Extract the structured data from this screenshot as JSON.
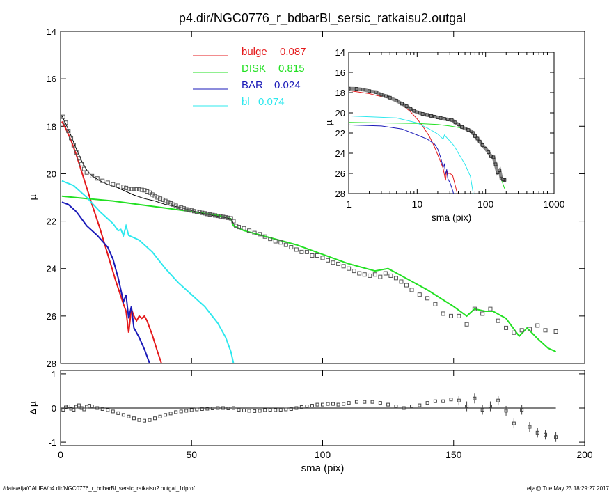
{
  "chart_data": [
    {
      "panel": "main",
      "type": "line",
      "title": "p4.dir/NGC0776_r_bdbarBl_sersic_ratkaisu2.outgal",
      "xlabel": "",
      "ylabel": "µ",
      "xlim": [
        0,
        200
      ],
      "ylim": [
        28,
        14
      ],
      "y_inverted": true,
      "xticks": [
        0,
        50,
        100,
        150,
        200
      ],
      "yticks": [
        14,
        16,
        18,
        20,
        22,
        24,
        26,
        28
      ],
      "legend": [
        {
          "name": "bulge",
          "value": "0.087",
          "color": "#e41a1c"
        },
        {
          "name": "DISK",
          "value": "0.815",
          "color": "#22e022"
        },
        {
          "name": "BAR",
          "value": "0.024",
          "color": "#1a1ab8"
        },
        {
          "name": "bl",
          "value": "0.074",
          "color": "#2ee8ee"
        }
      ],
      "legend_position": "top-center",
      "series": [
        {
          "name": "bulge",
          "color": "#e41a1c",
          "x": [
            0.5,
            2,
            4,
            6,
            8,
            10,
            12,
            15,
            18,
            21,
            24,
            25,
            26,
            27,
            28,
            29,
            30,
            31,
            32,
            33,
            35,
            37,
            38.5
          ],
          "y": [
            17.8,
            18.1,
            18.6,
            19.2,
            19.9,
            20.6,
            21.3,
            22.3,
            23.4,
            24.5,
            25.5,
            25.8,
            26.7,
            25.7,
            26.0,
            26.2,
            26.0,
            26.1,
            26.0,
            26.2,
            26.8,
            27.5,
            28.0
          ]
        },
        {
          "name": "DISK",
          "color": "#22e022",
          "x": [
            0.5,
            10,
            20,
            30,
            40,
            50,
            60,
            65,
            66,
            70,
            80,
            90,
            100,
            110,
            120,
            125,
            130,
            140,
            150,
            155,
            158,
            162,
            165,
            170,
            175,
            178,
            182,
            186,
            189
          ],
          "y": [
            20.95,
            21.05,
            21.15,
            21.3,
            21.45,
            21.6,
            21.75,
            21.9,
            22.2,
            22.4,
            22.7,
            23.0,
            23.4,
            23.8,
            24.1,
            24.0,
            24.3,
            24.9,
            25.6,
            26.0,
            25.7,
            25.8,
            25.8,
            26.1,
            26.85,
            26.5,
            26.95,
            27.35,
            27.5
          ]
        },
        {
          "name": "BAR",
          "color": "#1a1ab8",
          "x": [
            0.5,
            3,
            6,
            10,
            14,
            18,
            20,
            22,
            24,
            25,
            26,
            27,
            28,
            30,
            32,
            34
          ],
          "y": [
            21.2,
            21.3,
            21.6,
            22.2,
            22.6,
            23.1,
            23.6,
            24.4,
            25.4,
            25.1,
            26.1,
            25.6,
            26.5,
            26.9,
            27.4,
            28.0
          ]
        },
        {
          "name": "bl",
          "color": "#2ee8ee",
          "x": [
            0.5,
            5,
            10,
            15,
            20,
            22,
            23,
            24,
            25,
            26,
            28,
            30,
            35,
            40,
            45,
            50,
            55,
            60,
            63,
            65,
            66
          ],
          "y": [
            20.3,
            20.5,
            21.0,
            21.6,
            22.1,
            22.4,
            22.35,
            22.6,
            22.2,
            22.6,
            22.7,
            22.8,
            23.3,
            24.0,
            24.6,
            25.1,
            25.6,
            26.3,
            26.9,
            27.5,
            28.0
          ]
        },
        {
          "name": "model-total",
          "color": "#000000",
          "x": [
            0.5,
            2,
            4,
            6,
            8,
            10,
            12,
            15,
            18,
            22,
            25,
            28,
            32,
            36,
            40,
            45,
            50,
            55,
            60,
            65,
            66
          ],
          "y": [
            17.55,
            17.9,
            18.4,
            18.95,
            19.45,
            19.85,
            20.1,
            20.3,
            20.45,
            20.6,
            20.75,
            20.9,
            21.05,
            21.15,
            21.3,
            21.4,
            21.55,
            21.7,
            21.8,
            21.9,
            22.1
          ]
        },
        {
          "name": "observed",
          "color": "#555555",
          "marker": "square",
          "x": [
            1,
            2,
            3,
            4,
            5,
            6,
            7,
            8,
            9,
            10,
            12,
            14,
            16,
            18,
            20,
            22,
            24,
            25,
            26,
            27,
            28,
            29,
            30,
            31,
            32,
            33,
            34,
            35,
            36,
            37,
            38,
            39,
            40,
            41,
            42,
            43,
            44,
            45,
            46,
            47,
            48,
            49,
            50,
            51,
            52,
            53,
            54,
            55,
            56,
            57,
            58,
            59,
            60,
            61,
            62,
            63,
            64,
            65,
            66,
            67,
            68,
            70,
            72,
            74,
            76,
            78,
            80,
            82,
            84,
            86,
            88,
            90,
            92,
            94,
            96,
            98,
            100,
            102,
            104,
            106,
            108,
            110,
            112,
            114,
            116,
            118,
            120,
            122,
            124,
            126,
            128,
            130,
            132,
            134,
            137,
            140,
            143,
            146,
            149,
            152,
            155,
            158,
            161,
            164,
            167,
            170,
            173,
            176,
            179,
            182,
            185,
            189
          ],
          "y": [
            17.6,
            17.85,
            18.2,
            18.5,
            18.8,
            19.1,
            19.35,
            19.6,
            19.8,
            19.95,
            20.1,
            20.2,
            20.3,
            20.38,
            20.45,
            20.5,
            20.55,
            20.6,
            20.65,
            20.65,
            20.65,
            20.66,
            20.66,
            20.68,
            20.7,
            20.75,
            20.8,
            20.88,
            20.95,
            21.0,
            21.05,
            21.1,
            21.15,
            21.2,
            21.25,
            21.3,
            21.35,
            21.4,
            21.43,
            21.46,
            21.5,
            21.52,
            21.55,
            21.58,
            21.6,
            21.62,
            21.65,
            21.67,
            21.7,
            21.72,
            21.74,
            21.76,
            21.78,
            21.8,
            21.82,
            21.84,
            21.86,
            21.88,
            22.0,
            22.2,
            22.25,
            22.3,
            22.4,
            22.5,
            22.55,
            22.65,
            22.75,
            22.85,
            22.9,
            23.0,
            23.1,
            23.2,
            23.3,
            23.3,
            23.45,
            23.45,
            23.55,
            23.65,
            23.75,
            23.8,
            23.9,
            24.0,
            24.1,
            24.2,
            24.25,
            24.3,
            24.25,
            24.35,
            24.2,
            24.3,
            24.4,
            24.55,
            24.7,
            24.9,
            25.1,
            25.25,
            25.5,
            25.9,
            26.0,
            26.0,
            26.35,
            25.7,
            25.9,
            25.7,
            26.2,
            26.5,
            26.7,
            26.6,
            26.55,
            26.4,
            26.6,
            26.65
          ]
        }
      ]
    },
    {
      "panel": "inset",
      "type": "line",
      "xlabel": "sma (pix)",
      "ylabel": "µ",
      "xscale": "log",
      "xlim": [
        1,
        1000
      ],
      "ylim": [
        28,
        14
      ],
      "y_inverted": true,
      "xticks": [
        1,
        10,
        100,
        1000
      ],
      "yticks": [
        14,
        16,
        18,
        20,
        22,
        24,
        26,
        28
      ],
      "series": [
        {
          "name": "bulge",
          "color": "#e41a1c",
          "x": [
            1,
            2,
            4,
            6,
            8,
            10,
            12,
            15,
            18,
            21,
            24,
            26,
            27,
            28,
            30,
            33,
            37,
            38.5
          ],
          "y": [
            17.8,
            18.1,
            18.6,
            19.2,
            19.9,
            20.6,
            21.3,
            22.3,
            23.4,
            24.5,
            25.5,
            26.7,
            25.7,
            26.0,
            26.0,
            26.2,
            27.5,
            28.0
          ]
        },
        {
          "name": "DISK",
          "color": "#22e022",
          "x": [
            1,
            10,
            20,
            30,
            40,
            50,
            60,
            65,
            66,
            70,
            80,
            90,
            100,
            120,
            150,
            175,
            189
          ],
          "y": [
            20.95,
            21.05,
            21.15,
            21.3,
            21.45,
            21.6,
            21.75,
            21.9,
            22.2,
            22.4,
            22.7,
            23.0,
            23.4,
            24.1,
            25.6,
            26.85,
            27.5
          ]
        },
        {
          "name": "BAR",
          "color": "#1a1ab8",
          "x": [
            1,
            3,
            6,
            10,
            14,
            18,
            20,
            22,
            24,
            25,
            26,
            27,
            28,
            30,
            32,
            34
          ],
          "y": [
            21.2,
            21.3,
            21.6,
            22.2,
            22.6,
            23.1,
            23.6,
            24.4,
            25.4,
            25.1,
            26.1,
            25.6,
            26.5,
            26.9,
            27.4,
            28.0
          ]
        },
        {
          "name": "bl",
          "color": "#2ee8ee",
          "x": [
            1,
            5,
            10,
            15,
            20,
            24,
            25,
            30,
            35,
            40,
            50,
            60,
            66
          ],
          "y": [
            20.3,
            20.5,
            21.0,
            21.6,
            22.1,
            22.6,
            22.2,
            22.8,
            23.3,
            24.0,
            25.1,
            26.3,
            28.0
          ]
        },
        {
          "name": "observed",
          "color": "#444444",
          "marker": "square",
          "x": [
            1,
            1.3,
            1.6,
            2,
            2.5,
            3,
            3.5,
            4,
            5,
            6,
            7,
            8,
            9,
            10,
            12,
            14,
            16,
            18,
            20,
            22,
            25,
            28,
            32,
            36,
            40,
            45,
            50,
            56,
            62,
            66,
            70,
            76,
            82,
            90,
            100,
            110,
            120,
            130,
            140,
            150,
            160,
            170,
            180,
            189
          ],
          "y": [
            17.6,
            17.62,
            17.7,
            17.85,
            17.95,
            18.2,
            18.35,
            18.5,
            18.8,
            19.1,
            19.35,
            19.6,
            19.8,
            19.95,
            20.1,
            20.2,
            20.3,
            20.38,
            20.45,
            20.5,
            20.6,
            20.65,
            20.7,
            20.95,
            21.15,
            21.4,
            21.55,
            21.7,
            21.82,
            22.0,
            22.3,
            22.55,
            22.85,
            23.2,
            23.55,
            23.9,
            24.3,
            24.4,
            25.1,
            25.9,
            25.7,
            26.5,
            26.6,
            26.65
          ]
        }
      ]
    },
    {
      "panel": "residual",
      "type": "scatter",
      "xlabel": "sma (pix)",
      "ylabel": "Δ µ",
      "xlim": [
        0,
        200
      ],
      "ylim": [
        -1.1,
        1.1
      ],
      "xticks": [
        0,
        50,
        100,
        150,
        200
      ],
      "yticks": [
        -1,
        0,
        1
      ],
      "zero_line": true,
      "series": [
        {
          "name": "residual",
          "color": "#444444",
          "marker": "square",
          "x": [
            1,
            2,
            3,
            4,
            5,
            6,
            7,
            8,
            9,
            10,
            11,
            12,
            14,
            16,
            18,
            20,
            22,
            24,
            26,
            28,
            30,
            32,
            34,
            36,
            38,
            40,
            42,
            44,
            46,
            48,
            50,
            52,
            54,
            56,
            58,
            60,
            62,
            64,
            66,
            68,
            70,
            72,
            74,
            76,
            78,
            80,
            82,
            84,
            86,
            88,
            90,
            92,
            94,
            96,
            98,
            100,
            102,
            104,
            106,
            108,
            110,
            113,
            116,
            119,
            122,
            125,
            128,
            131,
            134,
            137,
            140,
            143,
            146,
            149,
            152,
            155,
            158,
            161,
            164,
            167,
            170,
            173,
            176,
            179,
            182,
            185,
            189
          ],
          "y": [
            -0.05,
            0.02,
            0.05,
            -0.02,
            -0.05,
            0.04,
            0.08,
            0.0,
            -0.04,
            0.04,
            0.07,
            0.05,
            0.0,
            -0.03,
            -0.06,
            -0.1,
            -0.15,
            -0.2,
            -0.25,
            -0.3,
            -0.35,
            -0.37,
            -0.35,
            -0.3,
            -0.25,
            -0.2,
            -0.16,
            -0.12,
            -0.1,
            -0.08,
            -0.06,
            -0.04,
            -0.03,
            -0.02,
            -0.01,
            0.0,
            0.0,
            -0.01,
            0.0,
            -0.05,
            -0.07,
            -0.08,
            -0.09,
            -0.08,
            -0.06,
            -0.05,
            -0.06,
            -0.05,
            -0.04,
            -0.03,
            0.0,
            0.03,
            0.05,
            0.07,
            0.1,
            0.1,
            0.12,
            0.12,
            0.1,
            0.12,
            0.15,
            0.18,
            0.18,
            0.18,
            0.15,
            0.1,
            0.05,
            0.0,
            0.05,
            0.08,
            0.15,
            0.2,
            0.2,
            0.25,
            0.22,
            0.05,
            0.28,
            -0.05,
            0.05,
            0.22,
            -0.08,
            -0.45,
            -0.05,
            -0.55,
            -0.72,
            -0.78,
            -0.85
          ]
        }
      ]
    }
  ],
  "footer": {
    "path": "/data/eija/CALIFA/p4.dir/NGC0776_r_bdbarBl_sersic_ratkaisu2.outgal_1dprof",
    "user_date": "eija@  Tue May 23 18:29:27 2017"
  },
  "colors": {
    "bulge": "#e41a1c",
    "disk": "#22e022",
    "bar": "#1a1ab8",
    "bl": "#2ee8ee",
    "observed": "#444444",
    "axis": "#000000"
  }
}
